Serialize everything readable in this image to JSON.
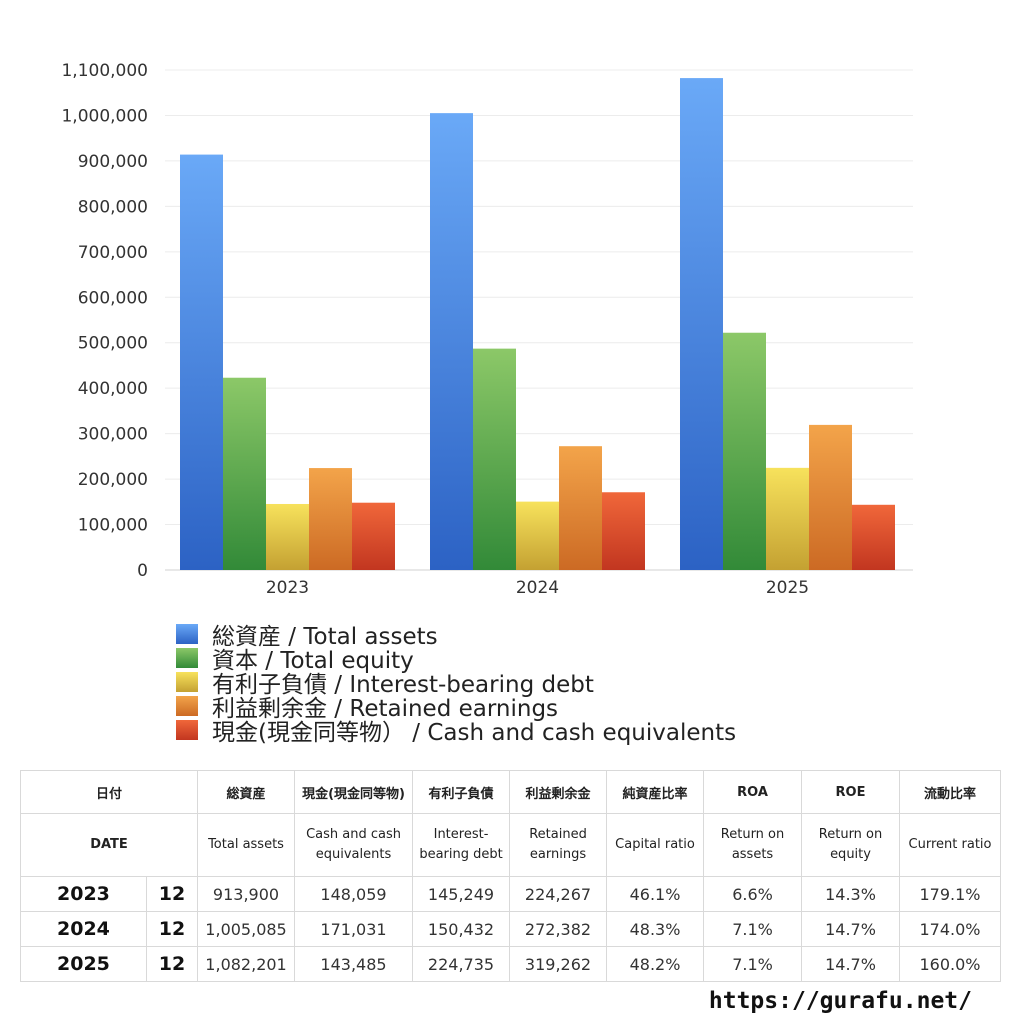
{
  "chart_data": {
    "type": "bar",
    "categories": [
      "2023",
      "2024",
      "2025"
    ],
    "ylim": [
      0,
      1100000
    ],
    "yticks": [
      "0",
      "100,000",
      "200,000",
      "300,000",
      "400,000",
      "500,000",
      "600,000",
      "700,000",
      "800,000",
      "900,000",
      "1,000,000",
      "1,100,000"
    ],
    "grid": true,
    "legend_position": "bottom",
    "series": [
      {
        "name": "総資産 / Total assets",
        "values": [
          913900,
          1005085,
          1082201
        ],
        "color_top": "#6aa9f7",
        "color_bottom": "#2c62c4"
      },
      {
        "name": "資本 / Total equity",
        "values": [
          423000,
          487000,
          522000
        ],
        "color_top": "#8cc868",
        "color_bottom": "#328a38"
      },
      {
        "name": "有利子負債 / Interest-bearing debt",
        "values": [
          145249,
          150432,
          224735
        ],
        "color_top": "#f7e25c",
        "color_bottom": "#c4a132"
      },
      {
        "name": "利益剰余金 / Retained earnings",
        "values": [
          224267,
          272382,
          319262
        ],
        "color_top": "#f3a44a",
        "color_bottom": "#cc6a24"
      },
      {
        "name": "現金(現金同等物）  /  Cash and cash equivalents",
        "values": [
          148059,
          171031,
          143485
        ],
        "color_top": "#f0673a",
        "color_bottom": "#c23620"
      }
    ]
  },
  "table": {
    "headers_jp": [
      "日付",
      "総資産",
      "現金(現金同等物)",
      "有利子負債",
      "利益剰余金",
      "純資産比率",
      "ROA",
      "ROE",
      "流動比率"
    ],
    "headers_en": [
      "DATE",
      "Total assets",
      "Cash and cash equivalents",
      "Interest-bearing debt",
      "Retained earnings",
      "Capital ratio",
      "Return on assets",
      "Return on equity",
      "Current ratio"
    ],
    "rows": [
      {
        "year": "2023",
        "month": "12",
        "cells": [
          "913,900",
          "148,059",
          "145,249",
          "224,267",
          "46.1%",
          "6.6%",
          "14.3%",
          "179.1%"
        ]
      },
      {
        "year": "2024",
        "month": "12",
        "cells": [
          "1,005,085",
          "171,031",
          "150,432",
          "272,382",
          "48.3%",
          "7.1%",
          "14.7%",
          "174.0%"
        ]
      },
      {
        "year": "2025",
        "month": "12",
        "cells": [
          "1,082,201",
          "143,485",
          "224,735",
          "319,262",
          "48.2%",
          "7.1%",
          "14.7%",
          "160.0%"
        ]
      }
    ]
  },
  "footer": {
    "url": "https://gurafu.net/"
  }
}
